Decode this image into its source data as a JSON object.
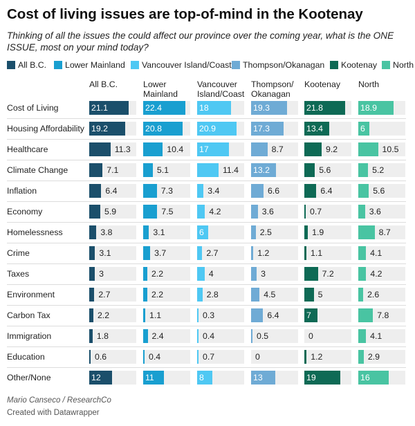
{
  "title": "Cost of living issues are top-of-mind in the Kootenay",
  "subtitle": "Thinking of all the issues the could affect our province over the coming year, what is the ONE ISSUE, most on your mind today?",
  "footer": {
    "source": "Mario Canseco / ResearchCo",
    "credit": "Created with Datawrapper"
  },
  "legend": [
    {
      "label": "All B.C.",
      "color": "#1b4f6b"
    },
    {
      "label": "Lower Mainland",
      "color": "#199fd0"
    },
    {
      "label": "Vancouver Island/Coast",
      "color": "#4fc8f3"
    },
    {
      "label": "Thompson/Okanagan",
      "color": "#6fabd5"
    },
    {
      "label": "Kootenay",
      "color": "#0e6a55"
    },
    {
      "label": "North",
      "color": "#49c4a2"
    }
  ],
  "columns": [
    {
      "label_lines": [
        "All B.C."
      ],
      "color": "#1b4f6b"
    },
    {
      "label_lines": [
        "Lower",
        "Mainland"
      ],
      "color": "#199fd0"
    },
    {
      "label_lines": [
        "Vancouver",
        "Island/Coast"
      ],
      "color": "#4fc8f3"
    },
    {
      "label_lines": [
        "Thompson/",
        "Okanagan"
      ],
      "color": "#6fabd5"
    },
    {
      "label_lines": [
        "Kootenay"
      ],
      "color": "#0e6a55"
    },
    {
      "label_lines": [
        "North"
      ],
      "color": "#49c4a2"
    }
  ],
  "chart_data": {
    "type": "bar",
    "orientation": "horizontal",
    "layout": "small-multiples",
    "title": "Cost of living issues are top-of-mind in the Kootenay",
    "categories": [
      "Cost of Living",
      "Housing Affordability",
      "Healthcare",
      "Climate Change",
      "Inflation",
      "Economy",
      "Homelessness",
      "Crime",
      "Taxes",
      "Environment",
      "Carbon Tax",
      "Immigration",
      "Education",
      "Other/None"
    ],
    "xlim": [
      0,
      25
    ],
    "grid": false,
    "legend": "top",
    "series": [
      {
        "name": "All B.C.",
        "values": [
          21.1,
          19.2,
          11.3,
          7.1,
          6.4,
          5.9,
          3.8,
          3.1,
          3,
          2.7,
          2.2,
          1.8,
          0.6,
          12
        ]
      },
      {
        "name": "Lower Mainland",
        "values": [
          22.4,
          20.8,
          10.4,
          5.1,
          7.3,
          7.5,
          3.1,
          3.7,
          2.2,
          2.2,
          1.1,
          2.4,
          0.4,
          11
        ]
      },
      {
        "name": "Vancouver Island/Coast",
        "values": [
          18,
          20.9,
          17,
          11.4,
          3.4,
          4.2,
          6,
          2.7,
          4,
          2.8,
          0.3,
          0.4,
          0.7,
          8
        ]
      },
      {
        "name": "Thompson/Okanagan",
        "values": [
          19.3,
          17.3,
          8.7,
          13.2,
          6.6,
          3.6,
          2.5,
          1.2,
          3,
          4.5,
          6.4,
          0.5,
          0,
          13
        ]
      },
      {
        "name": "Kootenay",
        "values": [
          21.8,
          13.4,
          9.2,
          5.6,
          6.4,
          0.7,
          1.9,
          1.1,
          7.2,
          5,
          7,
          0,
          1.2,
          19
        ]
      },
      {
        "name": "North",
        "values": [
          18.9,
          6,
          10.5,
          5.2,
          5.6,
          3.6,
          8.7,
          4.1,
          4.2,
          2.6,
          7.8,
          4.1,
          2.9,
          16
        ]
      }
    ]
  }
}
